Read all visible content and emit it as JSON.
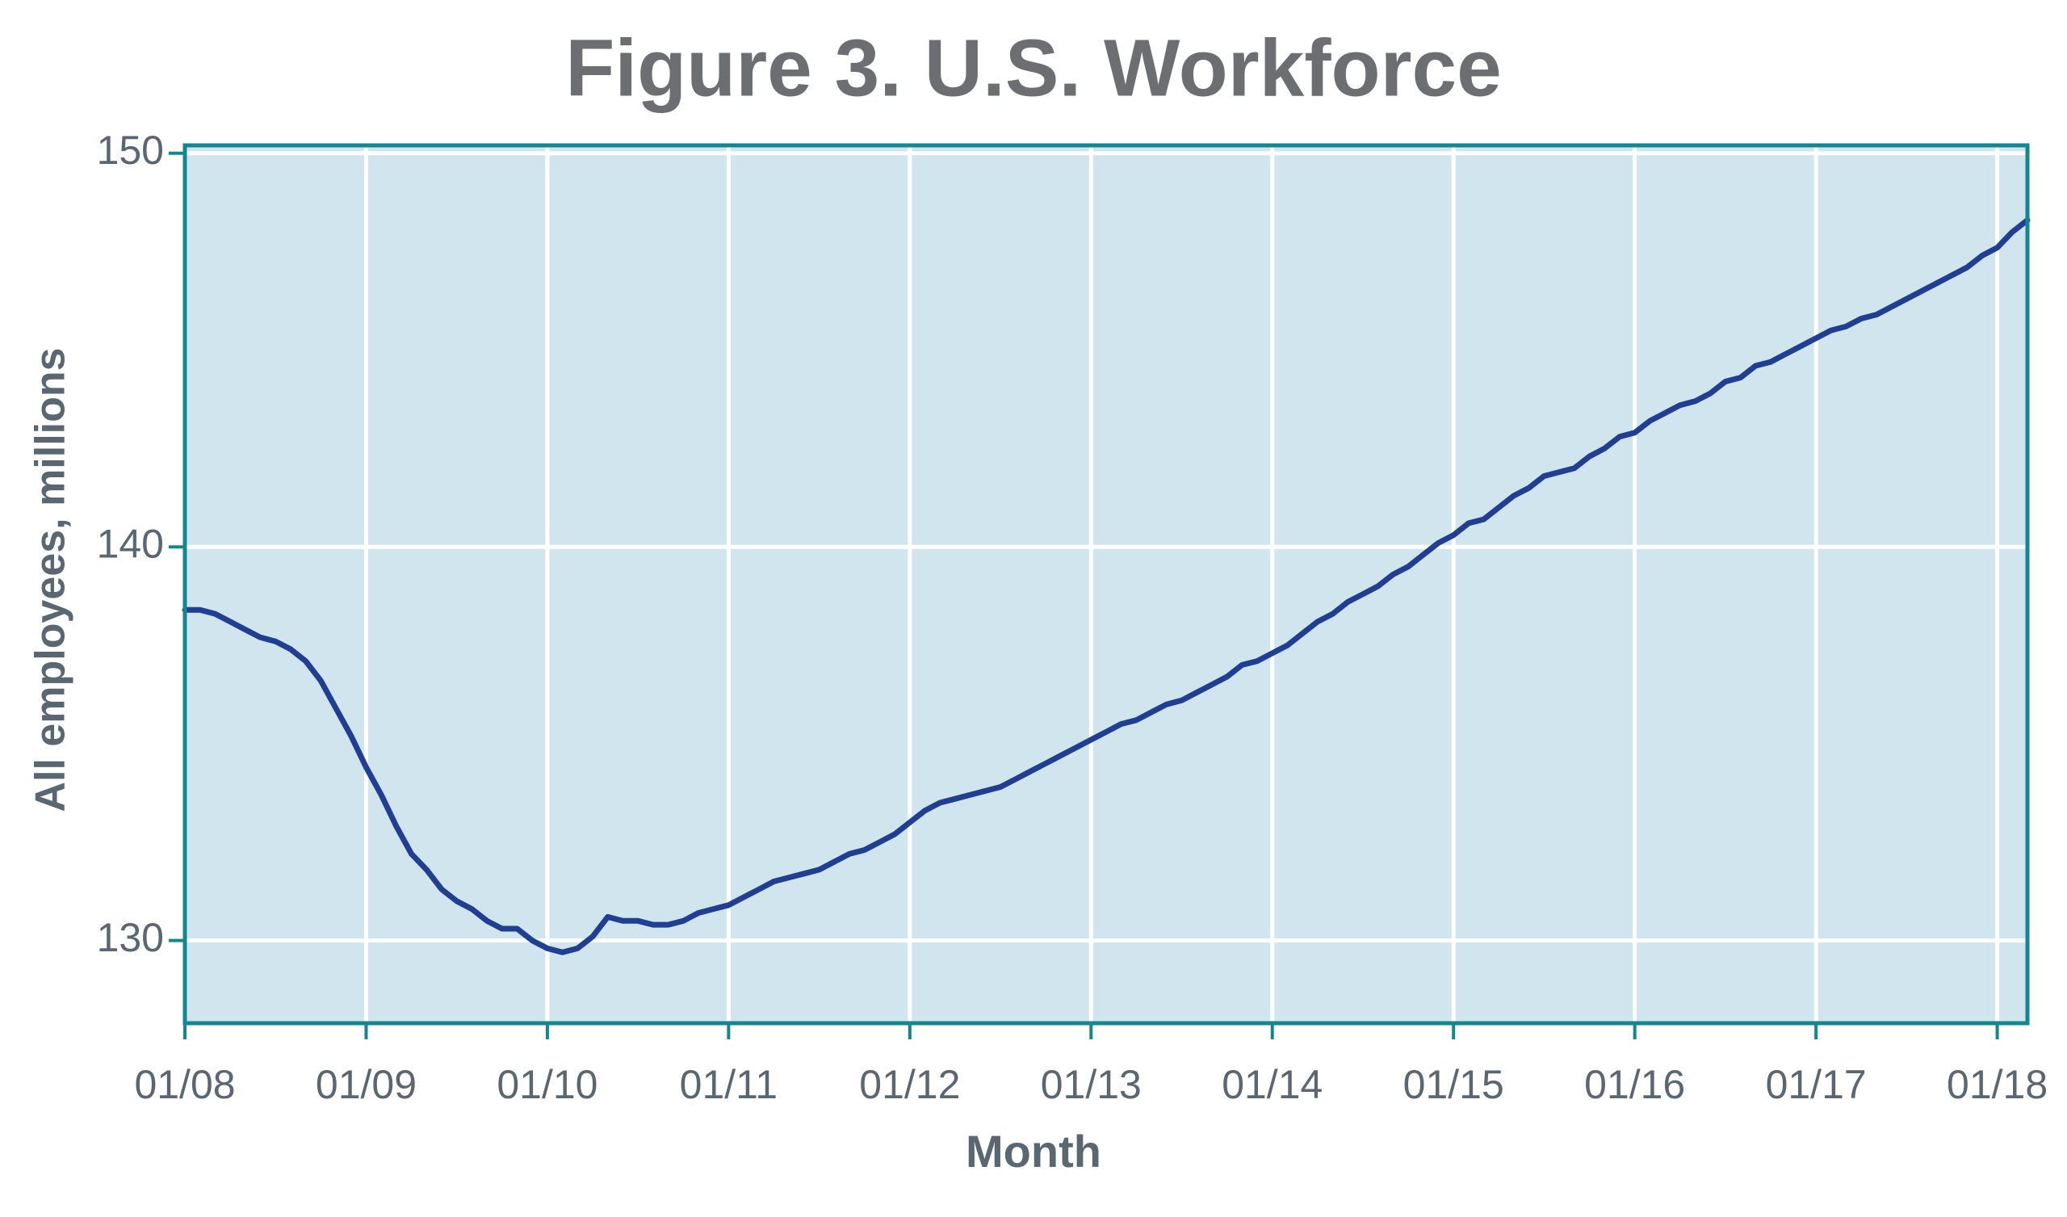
{
  "chart_data": {
    "type": "line",
    "title": "Figure 3. U.S. Workforce",
    "x_label": "Month",
    "y_label": "All employees, millions",
    "x": [
      "01/08",
      "02/08",
      "03/08",
      "04/08",
      "05/08",
      "06/08",
      "07/08",
      "08/08",
      "09/08",
      "10/08",
      "11/08",
      "12/08",
      "01/09",
      "02/09",
      "03/09",
      "04/09",
      "05/09",
      "06/09",
      "07/09",
      "08/09",
      "09/09",
      "10/09",
      "11/09",
      "12/09",
      "01/10",
      "02/10",
      "03/10",
      "04/10",
      "05/10",
      "06/10",
      "07/10",
      "08/10",
      "09/10",
      "10/10",
      "11/10",
      "12/10",
      "01/11",
      "02/11",
      "03/11",
      "04/11",
      "05/11",
      "06/11",
      "07/11",
      "08/11",
      "09/11",
      "10/11",
      "11/11",
      "12/11",
      "01/12",
      "02/12",
      "03/12",
      "04/12",
      "05/12",
      "06/12",
      "07/12",
      "08/12",
      "09/12",
      "10/12",
      "11/12",
      "12/12",
      "01/13",
      "02/13",
      "03/13",
      "04/13",
      "05/13",
      "06/13",
      "07/13",
      "08/13",
      "09/13",
      "10/13",
      "11/13",
      "12/13",
      "01/14",
      "02/14",
      "03/14",
      "04/14",
      "05/14",
      "06/14",
      "07/14",
      "08/14",
      "09/14",
      "10/14",
      "11/14",
      "12/14",
      "01/15",
      "02/15",
      "03/15",
      "04/15",
      "05/15",
      "06/15",
      "07/15",
      "08/15",
      "09/15",
      "10/15",
      "11/15",
      "12/15",
      "01/16",
      "02/16",
      "03/16",
      "04/16",
      "05/16",
      "06/16",
      "07/16",
      "08/16",
      "09/16",
      "10/16",
      "11/16",
      "12/16",
      "01/17",
      "02/17",
      "03/17",
      "04/17",
      "05/17",
      "06/17",
      "07/17",
      "08/17",
      "09/17",
      "10/17",
      "11/17",
      "12/17",
      "01/18",
      "02/18",
      "03/18"
    ],
    "values": [
      138.4,
      138.4,
      138.3,
      138.1,
      137.9,
      137.7,
      137.6,
      137.4,
      137.1,
      136.6,
      135.9,
      135.2,
      134.4,
      133.7,
      132.9,
      132.2,
      131.8,
      131.3,
      131.0,
      130.8,
      130.5,
      130.3,
      130.3,
      130.0,
      129.8,
      129.7,
      129.8,
      130.1,
      130.6,
      130.5,
      130.5,
      130.4,
      130.4,
      130.5,
      130.7,
      130.8,
      130.9,
      131.1,
      131.3,
      131.5,
      131.6,
      131.7,
      131.8,
      132.0,
      132.2,
      132.3,
      132.5,
      132.7,
      133.0,
      133.3,
      133.5,
      133.6,
      133.7,
      133.8,
      133.9,
      134.1,
      134.3,
      134.5,
      134.7,
      134.9,
      135.1,
      135.3,
      135.5,
      135.6,
      135.8,
      136.0,
      136.1,
      136.3,
      136.5,
      136.7,
      137.0,
      137.1,
      137.3,
      137.5,
      137.8,
      138.1,
      138.3,
      138.6,
      138.8,
      139.0,
      139.3,
      139.5,
      139.8,
      140.1,
      140.3,
      140.6,
      140.7,
      141.0,
      141.3,
      141.5,
      141.8,
      141.9,
      142.0,
      142.3,
      142.5,
      142.8,
      142.9,
      143.2,
      143.4,
      143.6,
      143.7,
      143.9,
      144.2,
      144.3,
      144.6,
      144.7,
      144.9,
      145.1,
      145.3,
      145.5,
      145.6,
      145.8,
      145.9,
      146.1,
      146.3,
      146.5,
      146.7,
      146.9,
      147.1,
      147.4,
      147.6,
      148.0,
      148.3
    ],
    "color": "#213f92",
    "xlim": [
      "01/08",
      "03/18"
    ],
    "xticks": [
      "01/08",
      "01/09",
      "01/10",
      "01/11",
      "01/12",
      "01/13",
      "01/14",
      "01/15",
      "01/16",
      "01/17",
      "01/18"
    ],
    "ylim": [
      127.9,
      150.2
    ],
    "yticks": [
      130,
      140,
      150
    ],
    "grid": true
  }
}
